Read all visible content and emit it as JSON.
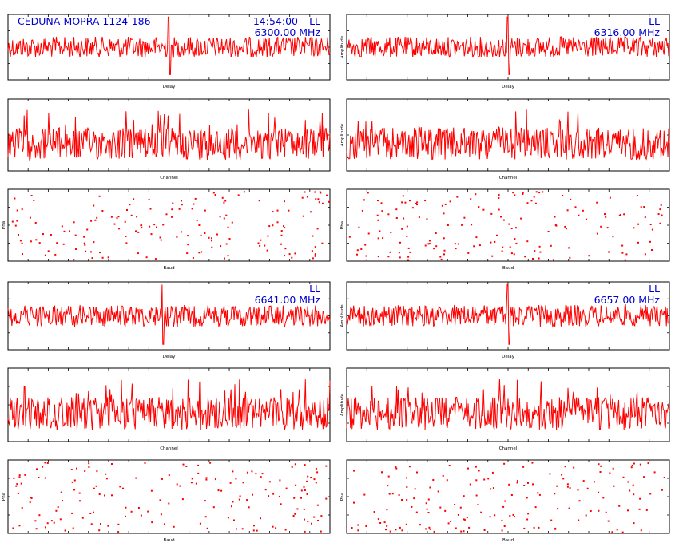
{
  "header": {
    "source": "CEDUNA-MOPRA 1124-186",
    "time": "14:54:00",
    "pol": "LL"
  },
  "colors": {
    "trace": "#ff0000",
    "annotation": "#0000cc",
    "frame": "#000000"
  },
  "chart_data": [
    {
      "type": "line",
      "group": 1,
      "column": "left",
      "kind": "delay",
      "xlabel": "Delay",
      "ylabel": "",
      "frequency": "6300.00 MHz",
      "pol": "LL",
      "show_time": true,
      "spike_position": 0.5
    },
    {
      "type": "line",
      "group": 1,
      "column": "right",
      "kind": "delay",
      "xlabel": "Delay",
      "ylabel": "Amplitude",
      "frequency": "6316.00 MHz",
      "pol": "LL",
      "show_time": false,
      "spike_position": 0.5
    },
    {
      "type": "line",
      "group": 1,
      "column": "left",
      "kind": "channel",
      "xlabel": "Channel",
      "ylabel": ""
    },
    {
      "type": "line",
      "group": 1,
      "column": "right",
      "kind": "channel",
      "xlabel": "Channel",
      "ylabel": "Amplitude"
    },
    {
      "type": "scatter",
      "group": 1,
      "column": "left",
      "kind": "phase",
      "xlabel": "Baud",
      "ylabel": "Pha"
    },
    {
      "type": "scatter",
      "group": 1,
      "column": "right",
      "kind": "phase",
      "xlabel": "Baud",
      "ylabel": "Pha"
    },
    {
      "type": "line",
      "group": 2,
      "column": "left",
      "kind": "delay",
      "xlabel": "Delay",
      "ylabel": "",
      "frequency": "6641.00 MHz",
      "pol": "LL",
      "show_time": false,
      "spike_position": 0.48
    },
    {
      "type": "line",
      "group": 2,
      "column": "right",
      "kind": "delay",
      "xlabel": "Delay",
      "ylabel": "Amplitude",
      "frequency": "6657.00 MHz",
      "pol": "LL",
      "show_time": false,
      "spike_position": 0.5
    },
    {
      "type": "line",
      "group": 2,
      "column": "left",
      "kind": "channel",
      "xlabel": "Channel",
      "ylabel": ""
    },
    {
      "type": "line",
      "group": 2,
      "column": "right",
      "kind": "channel",
      "xlabel": "Channel",
      "ylabel": "Amplitude"
    },
    {
      "type": "scatter",
      "group": 2,
      "column": "left",
      "kind": "phase",
      "xlabel": "Baud",
      "ylabel": "Pha"
    },
    {
      "type": "scatter",
      "group": 2,
      "column": "right",
      "kind": "phase",
      "xlabel": "Baud",
      "ylabel": "Pha"
    }
  ]
}
